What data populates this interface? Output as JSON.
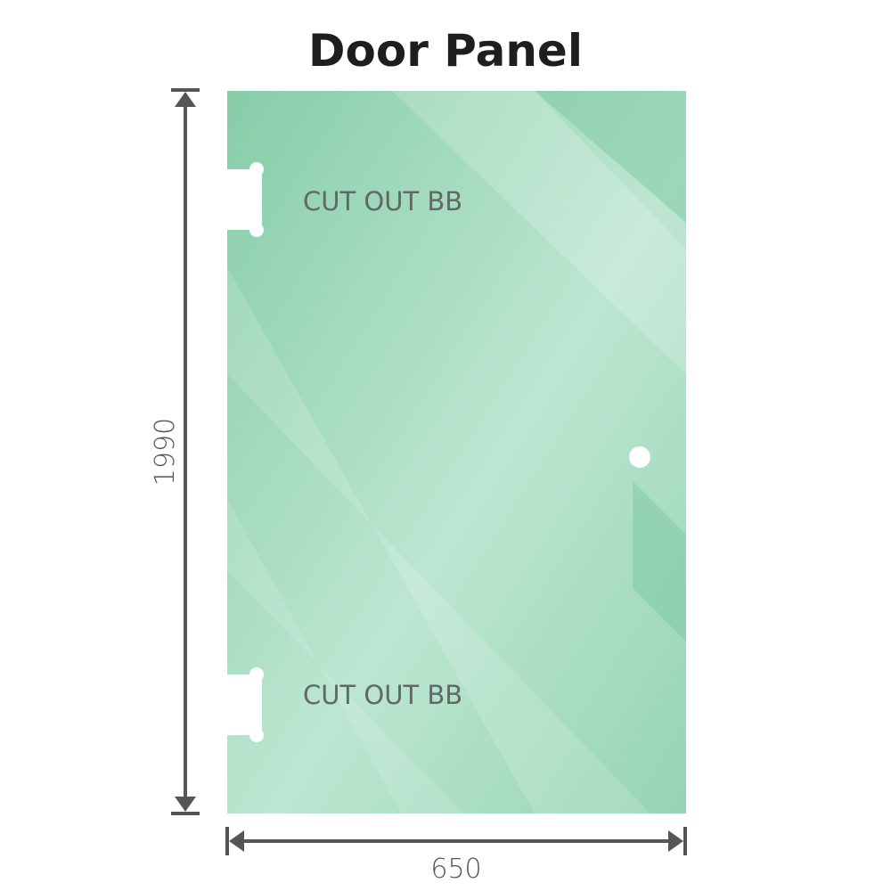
{
  "title": "Door Panel",
  "labels": {
    "cutout_top": "CUT OUT BB",
    "cutout_bottom": "CUT OUT BB"
  },
  "dimensions": {
    "height": "1990",
    "width": "650"
  },
  "colors": {
    "glass": "#8dd0ad",
    "glass_light": "#bde6d2",
    "dimension_line": "#555555",
    "text": "#5f6a66"
  }
}
